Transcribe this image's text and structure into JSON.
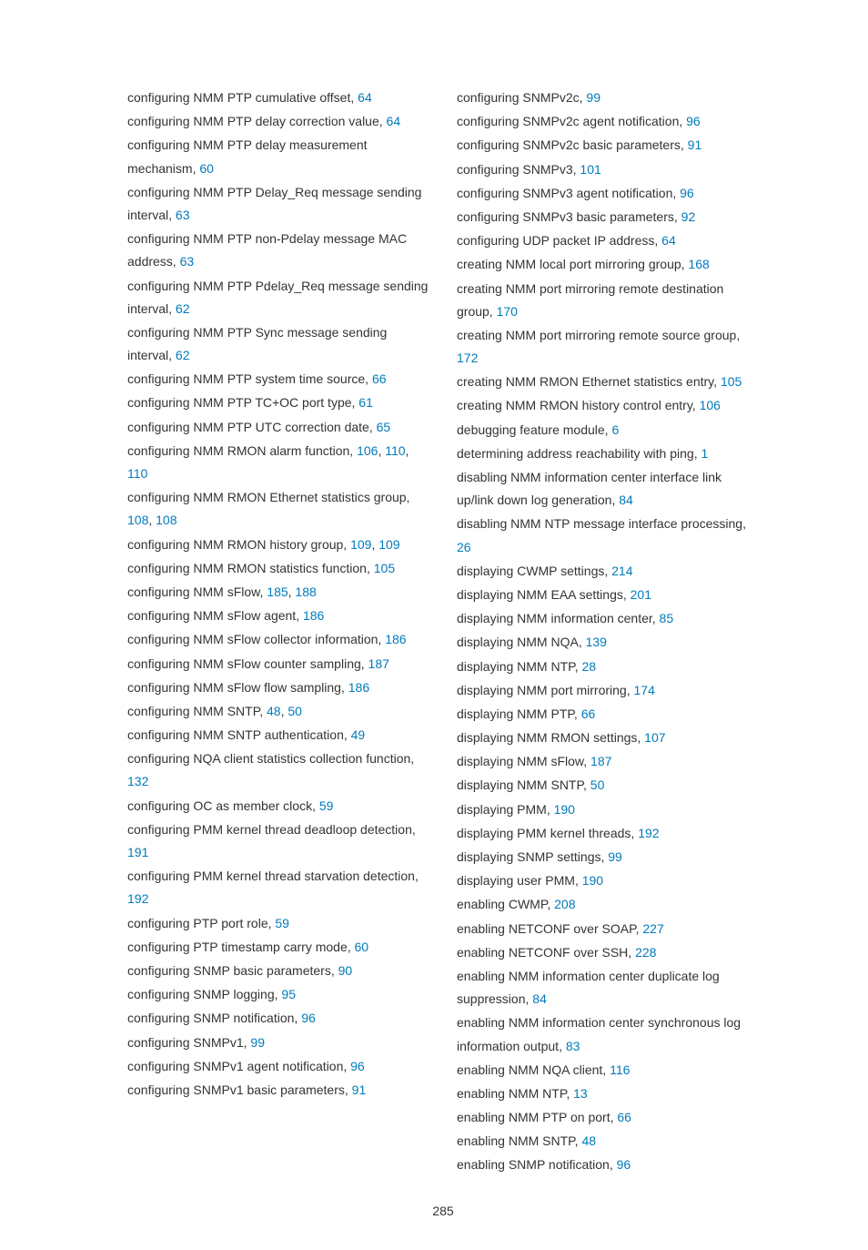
{
  "link_color": "#007bbb",
  "text_color": "#333333",
  "font_family": "Arial, Helvetica, sans-serif",
  "font_size_pt": 11,
  "page_number": "285",
  "left_column": [
    {
      "text": "configuring NMM PTP cumulative offset,",
      "pages": [
        "64"
      ]
    },
    {
      "text": "configuring NMM PTP delay correction value,",
      "pages": [
        "64"
      ]
    },
    {
      "text": "configuring NMM PTP delay measurement mechanism,",
      "pages": [
        "60"
      ]
    },
    {
      "text": "configuring NMM PTP Delay_Req message sending interval,",
      "pages": [
        "63"
      ]
    },
    {
      "text": "configuring NMM PTP non-Pdelay message MAC address,",
      "pages": [
        "63"
      ]
    },
    {
      "text": "configuring NMM PTP Pdelay_Req message sending interval,",
      "pages": [
        "62"
      ]
    },
    {
      "text": "configuring NMM PTP Sync message sending interval,",
      "pages": [
        "62"
      ]
    },
    {
      "text": "configuring NMM PTP system time source,",
      "pages": [
        "66"
      ]
    },
    {
      "text": "configuring NMM PTP TC+OC port type,",
      "pages": [
        "61"
      ]
    },
    {
      "text": "configuring NMM PTP UTC correction date,",
      "pages": [
        "65"
      ]
    },
    {
      "text": "configuring NMM RMON alarm function,",
      "pages": [
        "106",
        "110",
        "110"
      ]
    },
    {
      "text": "configuring NMM RMON Ethernet statistics group,",
      "pages": [
        "108",
        "108"
      ]
    },
    {
      "text": "configuring NMM RMON history group,",
      "pages": [
        "109",
        "109"
      ]
    },
    {
      "text": "configuring NMM RMON statistics function,",
      "pages": [
        "105"
      ]
    },
    {
      "text": "configuring NMM sFlow,",
      "pages": [
        "185",
        "188"
      ]
    },
    {
      "text": "configuring NMM sFlow agent,",
      "pages": [
        "186"
      ]
    },
    {
      "text": "configuring NMM sFlow collector information,",
      "pages": [
        "186"
      ]
    },
    {
      "text": "configuring NMM sFlow counter sampling,",
      "pages": [
        "187"
      ]
    },
    {
      "text": "configuring NMM sFlow flow sampling,",
      "pages": [
        "186"
      ]
    },
    {
      "text": "configuring NMM SNTP,",
      "pages": [
        "48",
        "50"
      ]
    },
    {
      "text": "configuring NMM SNTP authentication,",
      "pages": [
        "49"
      ]
    },
    {
      "text": "configuring NQA client statistics collection function,",
      "pages": [
        "132"
      ]
    },
    {
      "text": "configuring OC as member clock,",
      "pages": [
        "59"
      ]
    },
    {
      "text": "configuring PMM kernel thread deadloop detection,",
      "pages": [
        "191"
      ]
    },
    {
      "text": "configuring PMM kernel thread starvation detection,",
      "pages": [
        "192"
      ]
    },
    {
      "text": "configuring PTP port role,",
      "pages": [
        "59"
      ]
    },
    {
      "text": "configuring PTP timestamp carry mode,",
      "pages": [
        "60"
      ]
    },
    {
      "text": "configuring SNMP basic parameters,",
      "pages": [
        "90"
      ]
    },
    {
      "text": "configuring SNMP logging,",
      "pages": [
        "95"
      ]
    },
    {
      "text": "configuring SNMP notification,",
      "pages": [
        "96"
      ]
    },
    {
      "text": "configuring SNMPv1,",
      "pages": [
        "99"
      ]
    },
    {
      "text": "configuring SNMPv1 agent notification,",
      "pages": [
        "96"
      ]
    },
    {
      "text": "configuring SNMPv1 basic parameters,",
      "pages": [
        "91"
      ]
    }
  ],
  "right_column": [
    {
      "text": "configuring SNMPv2c,",
      "pages": [
        "99"
      ]
    },
    {
      "text": "configuring SNMPv2c agent notification,",
      "pages": [
        "96"
      ]
    },
    {
      "text": "configuring SNMPv2c basic parameters,",
      "pages": [
        "91"
      ]
    },
    {
      "text": "configuring SNMPv3,",
      "pages": [
        "101"
      ]
    },
    {
      "text": "configuring SNMPv3 agent notification,",
      "pages": [
        "96"
      ]
    },
    {
      "text": "configuring SNMPv3 basic parameters,",
      "pages": [
        "92"
      ]
    },
    {
      "text": "configuring UDP packet IP address,",
      "pages": [
        "64"
      ]
    },
    {
      "text": "creating NMM local port mirroring group,",
      "pages": [
        "168"
      ]
    },
    {
      "text": "creating NMM port mirroring remote destination group,",
      "pages": [
        "170"
      ]
    },
    {
      "text": "creating NMM port mirroring remote source group,",
      "pages": [
        "172"
      ]
    },
    {
      "text": "creating NMM RMON Ethernet statistics entry,",
      "pages": [
        "105"
      ]
    },
    {
      "text": "creating NMM RMON history control entry,",
      "pages": [
        "106"
      ]
    },
    {
      "text": "debugging feature module,",
      "pages": [
        "6"
      ]
    },
    {
      "text": "determining address reachability with ping,",
      "pages": [
        "1"
      ]
    },
    {
      "text": "disabling NMM information center interface link up/link down log generation,",
      "pages": [
        "84"
      ]
    },
    {
      "text": "disabling NMM NTP message interface processing,",
      "pages": [
        "26"
      ]
    },
    {
      "text": "displaying CWMP settings,",
      "pages": [
        "214"
      ]
    },
    {
      "text": "displaying NMM EAA settings,",
      "pages": [
        "201"
      ]
    },
    {
      "text": "displaying NMM information center,",
      "pages": [
        "85"
      ]
    },
    {
      "text": "displaying NMM NQA,",
      "pages": [
        "139"
      ]
    },
    {
      "text": "displaying NMM NTP,",
      "pages": [
        "28"
      ]
    },
    {
      "text": "displaying NMM port mirroring,",
      "pages": [
        "174"
      ]
    },
    {
      "text": "displaying NMM PTP,",
      "pages": [
        "66"
      ]
    },
    {
      "text": "displaying NMM RMON settings,",
      "pages": [
        "107"
      ]
    },
    {
      "text": "displaying NMM sFlow,",
      "pages": [
        "187"
      ]
    },
    {
      "text": "displaying NMM SNTP,",
      "pages": [
        "50"
      ]
    },
    {
      "text": "displaying PMM,",
      "pages": [
        "190"
      ]
    },
    {
      "text": "displaying PMM kernel threads,",
      "pages": [
        "192"
      ]
    },
    {
      "text": "displaying SNMP settings,",
      "pages": [
        "99"
      ]
    },
    {
      "text": "displaying user PMM,",
      "pages": [
        "190"
      ]
    },
    {
      "text": "enabling CWMP,",
      "pages": [
        "208"
      ]
    },
    {
      "text": "enabling NETCONF over SOAP,",
      "pages": [
        "227"
      ]
    },
    {
      "text": "enabling NETCONF over SSH,",
      "pages": [
        "228"
      ]
    },
    {
      "text": "enabling NMM information center duplicate log suppression,",
      "pages": [
        "84"
      ]
    },
    {
      "text": "enabling NMM information center synchronous log information output,",
      "pages": [
        "83"
      ]
    },
    {
      "text": "enabling NMM NQA client,",
      "pages": [
        "116"
      ]
    },
    {
      "text": "enabling NMM NTP,",
      "pages": [
        "13"
      ]
    },
    {
      "text": "enabling NMM PTP on port,",
      "pages": [
        "66"
      ]
    },
    {
      "text": "enabling NMM SNTP,",
      "pages": [
        "48"
      ]
    },
    {
      "text": "enabling SNMP notification,",
      "pages": [
        "96"
      ]
    }
  ]
}
